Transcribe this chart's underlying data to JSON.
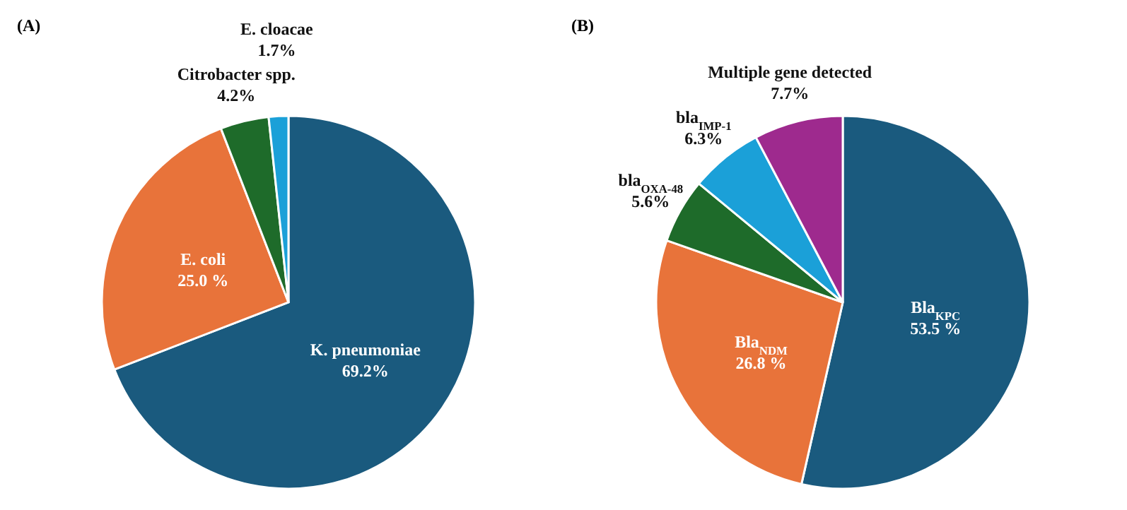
{
  "chart_data": [
    {
      "type": "pie",
      "title": "(A)",
      "categories": [
        "K. pneumoniae",
        "E. coli",
        "Citrobacter spp.",
        "E. cloacae"
      ],
      "values": [
        69.2,
        25.0,
        4.2,
        1.7
      ],
      "colors": [
        "#1a5a7e",
        "#e8733a",
        "#1e6b2a",
        "#1ba0d8"
      ],
      "value_labels": [
        "69.2%",
        "25.0 %",
        "4.2%",
        "1.7%"
      ]
    },
    {
      "type": "pie",
      "title": "(B)",
      "categories": [
        "Bla$_{KPC}$",
        "Bla$_{NDM}$",
        "bla$_{OXA-48}$",
        "bla$_{IMP-1}$",
        "Multiple gene detected"
      ],
      "values": [
        53.5,
        26.8,
        5.6,
        6.3,
        7.7
      ],
      "colors": [
        "#1a5a7e",
        "#e8733a",
        "#1e6b2a",
        "#1ba0d8",
        "#9e2a8e"
      ],
      "value_labels": [
        "53.5 %",
        "26.8 %",
        "5.6%",
        "6.3%",
        "7.7%"
      ]
    }
  ]
}
